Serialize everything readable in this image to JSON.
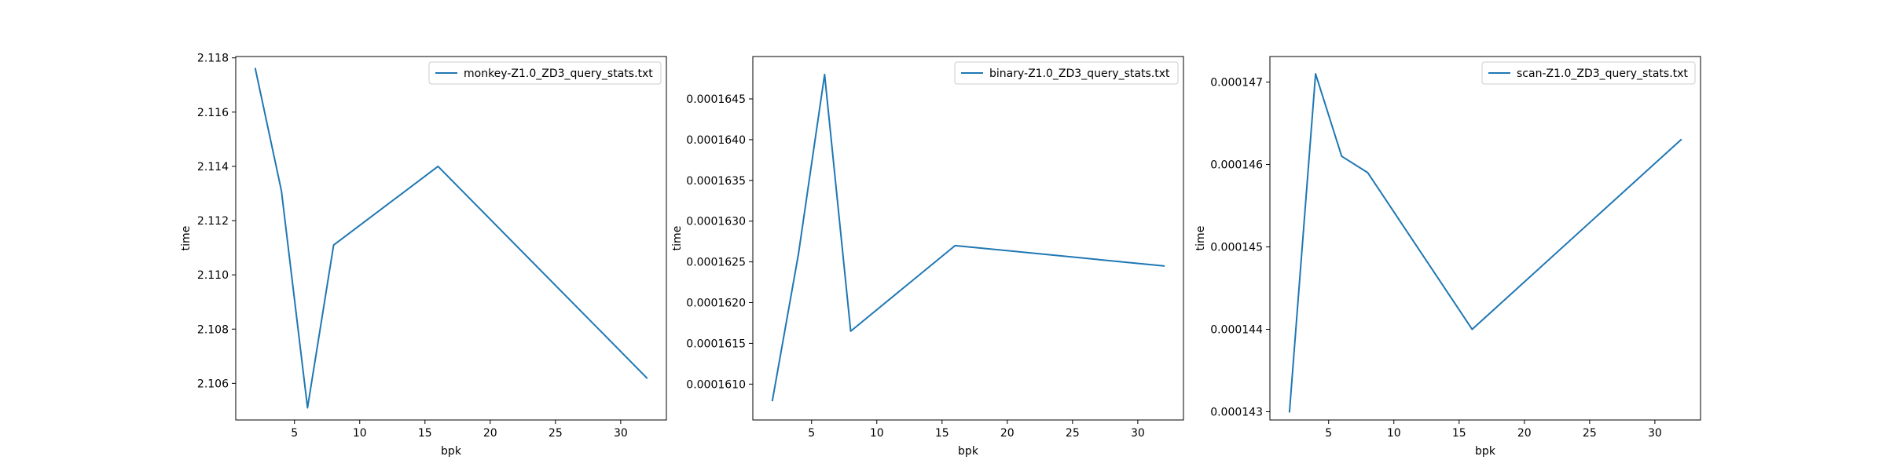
{
  "chart_data": [
    {
      "type": "line",
      "xlabel": "bpk",
      "ylabel": "time",
      "xlim": [
        0.5,
        33.5
      ],
      "ylim": [
        2.10465,
        2.11805
      ],
      "xticks": [
        5,
        10,
        15,
        20,
        25,
        30
      ],
      "xtick_labels": [
        "5",
        "10",
        "15",
        "20",
        "25",
        "30"
      ],
      "yticks": [
        2.106,
        2.108,
        2.11,
        2.112,
        2.114,
        2.116,
        2.118
      ],
      "ytick_labels": [
        "2.106",
        "2.108",
        "2.110",
        "2.112",
        "2.114",
        "2.116",
        "2.118"
      ],
      "legend_position": "upper right",
      "series": [
        {
          "name": "monkey-Z1.0_ZD3_query_stats.txt",
          "color": "#1f77b4",
          "x": [
            2,
            4,
            6,
            8,
            16,
            32
          ],
          "y": [
            2.1176,
            2.1131,
            2.1051,
            2.1111,
            2.114,
            2.1062
          ]
        }
      ]
    },
    {
      "type": "line",
      "xlabel": "bpk",
      "ylabel": "time",
      "xlim": [
        0.5,
        33.5
      ],
      "ylim": [
        0.00016056,
        0.00016502
      ],
      "xticks": [
        5,
        10,
        15,
        20,
        25,
        30
      ],
      "xtick_labels": [
        "5",
        "10",
        "15",
        "20",
        "25",
        "30"
      ],
      "yticks": [
        0.000161,
        0.0001615,
        0.000162,
        0.0001625,
        0.000163,
        0.0001635,
        0.000164,
        0.0001645
      ],
      "ytick_labels": [
        "0.0001610",
        "0.0001615",
        "0.0001620",
        "0.0001625",
        "0.0001630",
        "0.0001635",
        "0.0001640",
        "0.0001645"
      ],
      "legend_position": "upper right",
      "series": [
        {
          "name": "binary-Z1.0_ZD3_query_stats.txt",
          "color": "#1f77b4",
          "x": [
            2,
            4,
            6,
            8,
            16,
            32
          ],
          "y": [
            0.0001608,
            0.0001626,
            0.0001648,
            0.00016165,
            0.0001627,
            0.00016245
          ]
        }
      ]
    },
    {
      "type": "line",
      "xlabel": "bpk",
      "ylabel": "time",
      "xlim": [
        0.5,
        33.5
      ],
      "ylim": [
        0.0001429,
        0.00014731
      ],
      "xticks": [
        5,
        10,
        15,
        20,
        25,
        30
      ],
      "xtick_labels": [
        "5",
        "10",
        "15",
        "20",
        "25",
        "30"
      ],
      "yticks": [
        0.000143,
        0.000144,
        0.000145,
        0.000146,
        0.000147
      ],
      "ytick_labels": [
        "0.000143",
        "0.000144",
        "0.000145",
        "0.000146",
        "0.000147"
      ],
      "legend_position": "upper right",
      "series": [
        {
          "name": "scan-Z1.0_ZD3_query_stats.txt",
          "color": "#1f77b4",
          "x": [
            2,
            4,
            6,
            8,
            16,
            32
          ],
          "y": [
            0.000143,
            0.0001471,
            0.0001461,
            0.0001459,
            0.000144,
            0.0001463
          ]
        }
      ]
    }
  ]
}
